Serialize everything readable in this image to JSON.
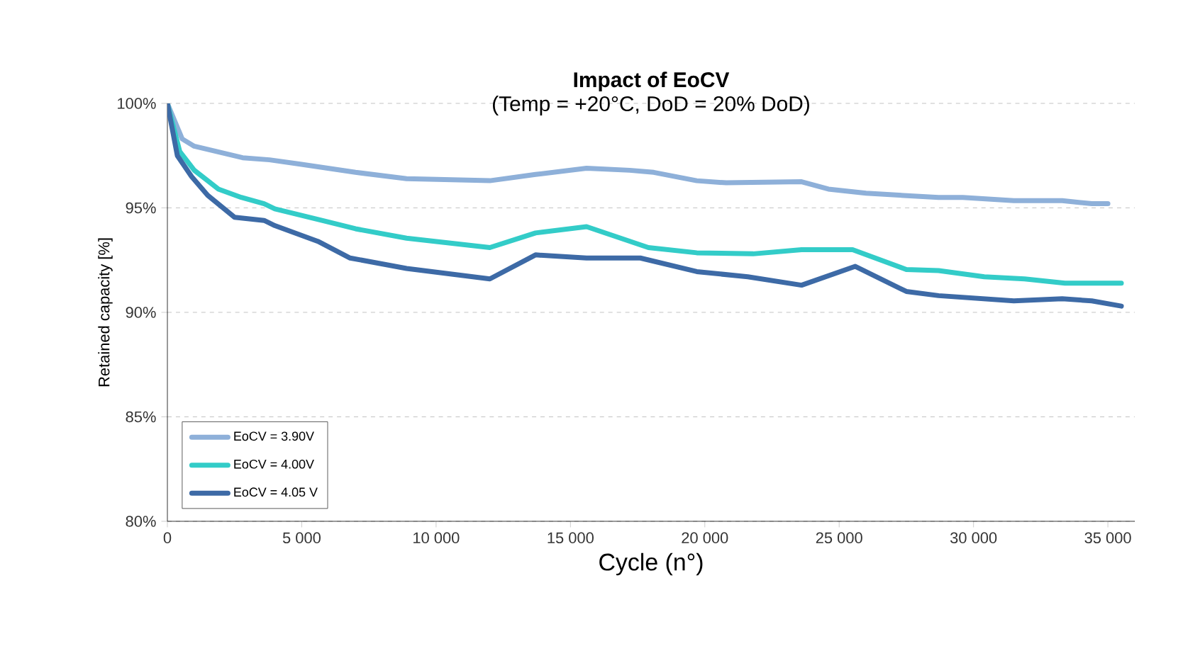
{
  "chart_data": {
    "type": "line",
    "title": "Impact of EoCV",
    "subtitle": "(Temp = +20°C, DoD = 20% DoD)",
    "xlabel": "Cycle (n°)",
    "ylabel": "Retained capacity [%]",
    "xlim": [
      0,
      36000
    ],
    "ylim": [
      80,
      100
    ],
    "xticks": [
      {
        "value": 0,
        "label": "0"
      },
      {
        "value": 5000,
        "label": "5 000"
      },
      {
        "value": 10000,
        "label": "10 000"
      },
      {
        "value": 15000,
        "label": "15 000"
      },
      {
        "value": 20000,
        "label": "20 000"
      },
      {
        "value": 25000,
        "label": "25 000"
      },
      {
        "value": 30000,
        "label": "30 000"
      },
      {
        "value": 35000,
        "label": "35 000"
      }
    ],
    "yticks": [
      {
        "value": 80,
        "label": "80%"
      },
      {
        "value": 85,
        "label": "85%"
      },
      {
        "value": 90,
        "label": "90%"
      },
      {
        "value": 95,
        "label": "95%"
      },
      {
        "value": 100,
        "label": "100%"
      }
    ],
    "grid": "y",
    "legend": "bottom left",
    "marker": "none",
    "line_style": "solid",
    "series": [
      {
        "name": "EoCV = 3.90V",
        "color": "#8eb0d9",
        "x": [
          0,
          550,
          1000,
          2800,
          3800,
          4900,
          7000,
          8900,
          12000,
          13700,
          15600,
          17200,
          18100,
          19700,
          20800,
          23600,
          24600,
          26000,
          28700,
          29600,
          31500,
          33300,
          34400,
          35000
        ],
        "values": [
          100,
          98.3,
          97.95,
          97.4,
          97.3,
          97.1,
          96.7,
          96.4,
          96.3,
          96.6,
          96.9,
          96.8,
          96.7,
          96.3,
          96.2,
          96.25,
          95.9,
          95.7,
          95.5,
          95.5,
          95.35,
          95.35,
          95.2,
          95.2
        ]
      },
      {
        "name": "EoCV = 4.00V",
        "color": "#33ccc8",
        "x": [
          0,
          460,
          1000,
          1900,
          2750,
          3600,
          4000,
          5750,
          7000,
          8900,
          12000,
          13700,
          15600,
          17900,
          19700,
          21800,
          23600,
          25500,
          27500,
          28700,
          30400,
          31900,
          33400,
          35500
        ],
        "values": [
          100,
          97.7,
          96.8,
          95.9,
          95.5,
          95.2,
          94.95,
          94.4,
          94.0,
          93.55,
          93.1,
          93.8,
          94.1,
          93.1,
          92.85,
          92.8,
          93.0,
          93.0,
          92.05,
          92.0,
          91.7,
          91.6,
          91.4,
          91.4
        ]
      },
      {
        "name": "EoCV = 4.05 V",
        "color": "#3d6aa6",
        "x": [
          0,
          370,
          900,
          1500,
          2500,
          3600,
          4000,
          5600,
          6800,
          8900,
          12000,
          13700,
          15600,
          17600,
          19700,
          21600,
          23600,
          25600,
          27500,
          28700,
          31500,
          33300,
          34400,
          35500
        ],
        "values": [
          100,
          97.5,
          96.5,
          95.6,
          94.55,
          94.4,
          94.15,
          93.4,
          92.6,
          92.1,
          91.6,
          92.75,
          92.6,
          92.6,
          91.95,
          91.7,
          91.3,
          92.2,
          91.0,
          90.8,
          90.55,
          90.65,
          90.55,
          90.3
        ]
      }
    ]
  }
}
